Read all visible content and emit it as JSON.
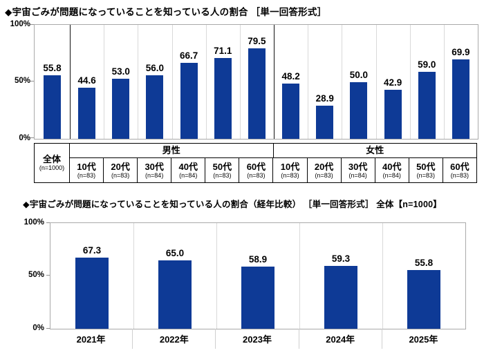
{
  "chart_data": [
    {
      "type": "bar",
      "title": "◆宇宙ごみが問題になっていることを知っている人の割合 ［単一回答形式］",
      "ylim": [
        0,
        100
      ],
      "y_ticks": [
        "100%",
        "50%",
        "0%"
      ],
      "bar_color": "#0e3a96",
      "legend": "none",
      "grid": "vertical column separators only",
      "groups": [
        {
          "header": "男性"
        },
        {
          "header": "女性"
        }
      ],
      "columns": [
        {
          "group": "全体",
          "label": "全体",
          "n": "(n=1000)",
          "value": 55.8,
          "value_label": "55.8"
        },
        {
          "group": "男性",
          "label": "10代",
          "n": "(n=83)",
          "value": 44.6,
          "value_label": "44.6"
        },
        {
          "group": "男性",
          "label": "20代",
          "n": "(n=83)",
          "value": 53.0,
          "value_label": "53.0"
        },
        {
          "group": "男性",
          "label": "30代",
          "n": "(n=84)",
          "value": 56.0,
          "value_label": "56.0"
        },
        {
          "group": "男性",
          "label": "40代",
          "n": "(n=84)",
          "value": 66.7,
          "value_label": "66.7"
        },
        {
          "group": "男性",
          "label": "50代",
          "n": "(n=83)",
          "value": 71.1,
          "value_label": "71.1"
        },
        {
          "group": "男性",
          "label": "60代",
          "n": "(n=83)",
          "value": 79.5,
          "value_label": "79.5"
        },
        {
          "group": "女性",
          "label": "10代",
          "n": "(n=83)",
          "value": 48.2,
          "value_label": "48.2"
        },
        {
          "group": "女性",
          "label": "20代",
          "n": "(n=83)",
          "value": 28.9,
          "value_label": "28.9"
        },
        {
          "group": "女性",
          "label": "30代",
          "n": "(n=84)",
          "value": 50.0,
          "value_label": "50.0"
        },
        {
          "group": "女性",
          "label": "40代",
          "n": "(n=84)",
          "value": 42.9,
          "value_label": "42.9"
        },
        {
          "group": "女性",
          "label": "50代",
          "n": "(n=83)",
          "value": 59.0,
          "value_label": "59.0"
        },
        {
          "group": "女性",
          "label": "60代",
          "n": "(n=83)",
          "value": 69.9,
          "value_label": "69.9"
        }
      ]
    },
    {
      "type": "bar",
      "title": "◆宇宙ごみが問題になっていることを知っている人の割合（経年比較） ［単一回答形式］ 全体【n=1000】",
      "ylim": [
        0,
        100
      ],
      "y_ticks": [
        "100%",
        "50%",
        "0%"
      ],
      "bar_color": "#0e3a96",
      "legend": "none",
      "categories": [
        "2021年",
        "2022年",
        "2023年",
        "2024年",
        "2025年"
      ],
      "values": [
        67.3,
        65.0,
        58.9,
        59.3,
        55.8
      ],
      "value_labels": [
        "67.3",
        "65.0",
        "58.9",
        "59.3",
        "55.8"
      ]
    }
  ]
}
